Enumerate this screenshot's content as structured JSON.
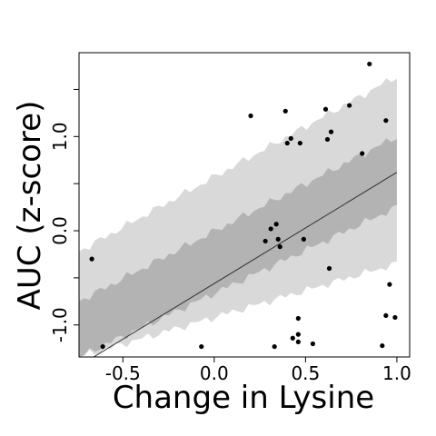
{
  "chart_data": {
    "type": "scatter",
    "title": "",
    "xlabel": "Change in Lysine",
    "ylabel": "AUC (z-score)",
    "xlim": [
      -0.74,
      1.07
    ],
    "ylim": [
      -1.34,
      1.89
    ],
    "x_ticks": [
      {
        "value": -0.5,
        "label": "-0.5"
      },
      {
        "value": 0.0,
        "label": "0.0"
      },
      {
        "value": 0.5,
        "label": "0.5"
      },
      {
        "value": 1.0,
        "label": "1.0"
      }
    ],
    "y_ticks": [
      {
        "value": -1.0,
        "label": "-1.0"
      },
      {
        "value": -0.5,
        "label": ""
      },
      {
        "value": 0.0,
        "label": "0.0"
      },
      {
        "value": 0.5,
        "label": ""
      },
      {
        "value": 1.0,
        "label": "1.0"
      },
      {
        "value": 1.5,
        "label": ""
      }
    ],
    "points": [
      {
        "x": -0.67,
        "y": -0.3
      },
      {
        "x": -0.61,
        "y": -1.23
      },
      {
        "x": -0.07,
        "y": -1.23
      },
      {
        "x": 0.2,
        "y": 1.22
      },
      {
        "x": 0.28,
        "y": -0.11
      },
      {
        "x": 0.31,
        "y": 0.02
      },
      {
        "x": 0.34,
        "y": 0.07
      },
      {
        "x": 0.35,
        "y": -0.09
      },
      {
        "x": 0.36,
        "y": -0.17
      },
      {
        "x": 0.33,
        "y": -1.23
      },
      {
        "x": 0.39,
        "y": 1.27
      },
      {
        "x": 0.4,
        "y": 0.93
      },
      {
        "x": 0.42,
        "y": 0.98
      },
      {
        "x": 0.43,
        "y": -1.14
      },
      {
        "x": 0.46,
        "y": -1.1
      },
      {
        "x": 0.46,
        "y": -1.18
      },
      {
        "x": 0.46,
        "y": -0.93
      },
      {
        "x": 0.47,
        "y": 0.93
      },
      {
        "x": 0.49,
        "y": -0.09
      },
      {
        "x": 0.54,
        "y": -1.2
      },
      {
        "x": 0.61,
        "y": 1.29
      },
      {
        "x": 0.62,
        "y": 0.97
      },
      {
        "x": 0.64,
        "y": 1.05
      },
      {
        "x": 0.63,
        "y": -0.4
      },
      {
        "x": 0.74,
        "y": 1.33
      },
      {
        "x": 0.81,
        "y": 0.82
      },
      {
        "x": 0.85,
        "y": 1.77
      },
      {
        "x": 0.92,
        "y": -1.22
      },
      {
        "x": 0.94,
        "y": 1.17
      },
      {
        "x": 0.94,
        "y": -0.9
      },
      {
        "x": 0.96,
        "y": -0.57
      },
      {
        "x": 0.99,
        "y": -0.92
      }
    ],
    "fit_line": {
      "x": [
        -0.66,
        1.0
      ],
      "y": [
        -1.34,
        0.62
      ]
    },
    "bands": {
      "inner": {
        "x": [
          -0.74,
          1.0
        ],
        "upper": [
          -0.75,
          1.0
        ],
        "lower": [
          -1.34,
          0.25
        ]
      },
      "outer": {
        "x": [
          -0.74,
          1.0
        ],
        "upper": [
          -0.22,
          1.64
        ],
        "lower": [
          -1.34,
          -0.35
        ]
      }
    },
    "grid": false,
    "legend": "none",
    "colors": {
      "outer_band": "#d9d9d9",
      "inner_band": "#b3b3b3",
      "fit_line": "#333333",
      "points": "#000000"
    }
  }
}
